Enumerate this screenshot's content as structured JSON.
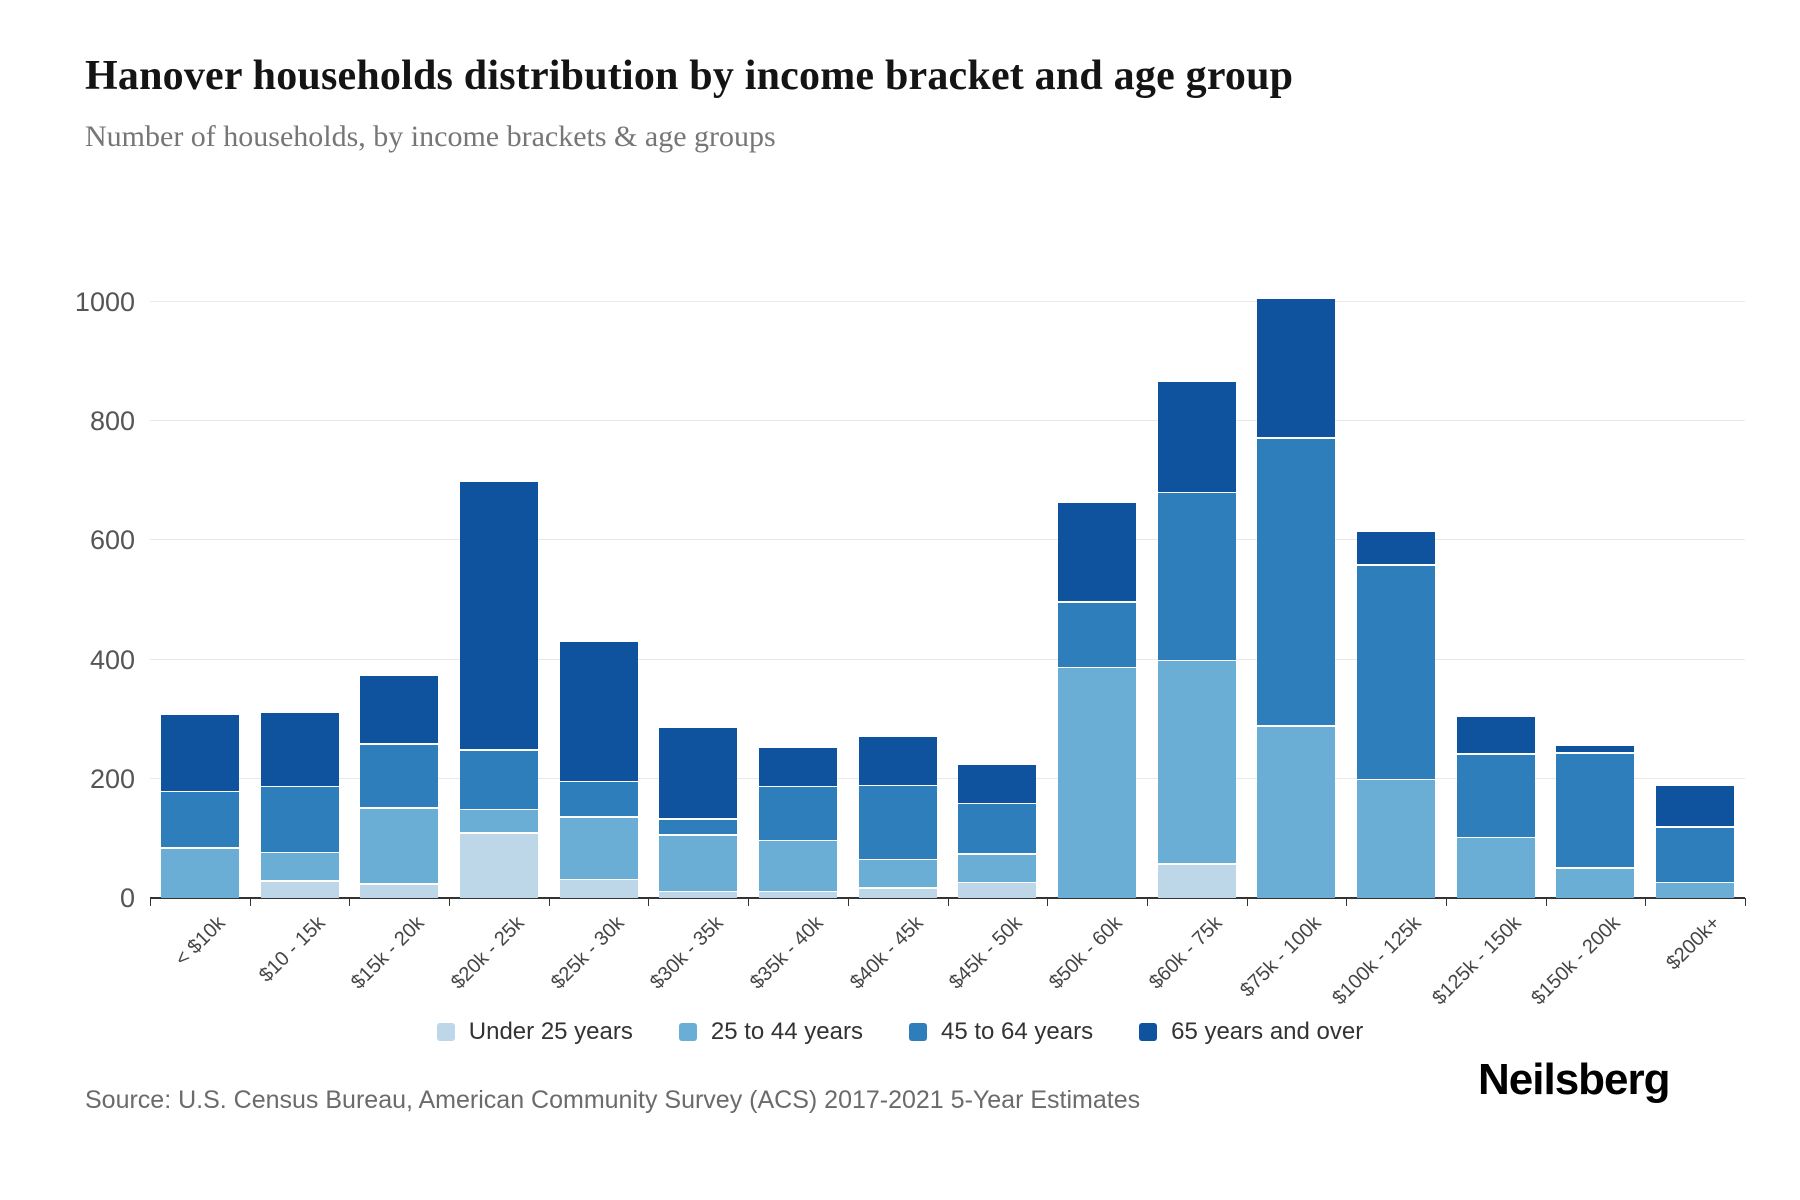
{
  "header": {
    "title": "Hanover households distribution by income bracket and age group",
    "subtitle": "Number of households, by income brackets & age groups"
  },
  "chart_data": {
    "type": "bar",
    "stacked": true,
    "title": "Hanover households distribution by income bracket and age group",
    "subtitle": "Number of households, by income brackets & age groups",
    "xlabel": "",
    "ylabel": "",
    "ylim": [
      0,
      1000
    ],
    "yticks": [
      0,
      200,
      400,
      600,
      800,
      1000
    ],
    "grid": "horizontal",
    "legend_position": "bottom",
    "categories": [
      "< $10k",
      "$10 - 15k",
      "$15k - 20k",
      "$20k - 25k",
      "$25k - 30k",
      "$30k - 35k",
      "$35k - 40k",
      "$40k - 45k",
      "$45k - 50k",
      "$50k - 60k",
      "$60k - 75k",
      "$75k - 100k",
      "$100k - 125k",
      "$125k - 150k",
      "$150k - 200k",
      "$200k+"
    ],
    "series": [
      {
        "name": "Under 25 years",
        "color": "#bdd7e9",
        "values": [
          0,
          30,
          25,
          110,
          32,
          12,
          12,
          18,
          27,
          0,
          58,
          0,
          0,
          0,
          0,
          0
        ]
      },
      {
        "name": "25 to 44 years",
        "color": "#6aaed6",
        "values": [
          85,
          48,
          127,
          40,
          105,
          95,
          86,
          48,
          48,
          388,
          342,
          290,
          200,
          103,
          52,
          27
        ]
      },
      {
        "name": "45 to 64 years",
        "color": "#2e7ebc",
        "values": [
          95,
          110,
          108,
          100,
          60,
          27,
          90,
          124,
          85,
          110,
          282,
          483,
          360,
          140,
          193,
          93
        ]
      },
      {
        "name": "65 years and over",
        "color": "#0f529e",
        "values": [
          130,
          125,
          115,
          450,
          235,
          154,
          67,
          82,
          65,
          168,
          186,
          235,
          57,
          63,
          12,
          70
        ]
      }
    ],
    "totals": [
      310,
      313,
      375,
      700,
      432,
      288,
      255,
      272,
      225,
      666,
      868,
      1008,
      617,
      306,
      257,
      190
    ],
    "axis_color": "#333333",
    "grid_color": "#e9e9e9"
  },
  "footer": {
    "source": "Source: U.S. Census Bureau, American Community Survey (ACS) 2017-2021 5-Year Estimates",
    "brand": "Neilsberg"
  }
}
